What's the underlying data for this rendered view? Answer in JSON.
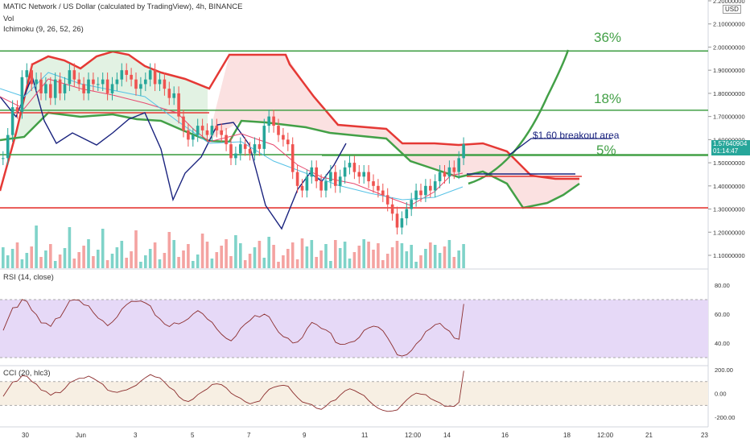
{
  "header": {
    "symbol": "MATIC Network / US Dollar (calculated by TradingView), 4h, BINANCE",
    "vol_label": "Vol",
    "ichimoku_label": "Ichimoku (9, 26, 52, 26)",
    "rsi_label": "RSI (14, close)",
    "cci_label": "CCI (20, hlc3)"
  },
  "price_axis": {
    "currency": "USD",
    "ticks": [
      "2.20000000",
      "2.10000000",
      "2.00000000",
      "1.90000000",
      "1.80000000",
      "1.70000000",
      "1.60000000",
      "1.50000000",
      "1.40000000",
      "1.30000000",
      "1.20000000",
      "1.10000000"
    ],
    "last_price": "1.57640904",
    "countdown": "01:14:47"
  },
  "rsi_axis": {
    "ticks": [
      "80.00",
      "60.00",
      "40.00"
    ]
  },
  "cci_axis": {
    "ticks": [
      "200.00",
      "0.00",
      "-200.00"
    ]
  },
  "time_axis": {
    "ticks": [
      "30",
      "Jun",
      "3",
      "5",
      "7",
      "9",
      "11",
      "12:00",
      "14",
      "16",
      "18",
      "12:00",
      "21",
      "23"
    ]
  },
  "annotations": {
    "target_36": "36%",
    "target_18": "18%",
    "target_5": "5%",
    "breakout": "$1.60 breakout area"
  },
  "colors": {
    "up": "#26a69a",
    "down": "#ef5350",
    "green_line": "#43a047",
    "red_line": "#e53935",
    "blue_line": "#1a237e",
    "rsi_band": "#e6d9f7",
    "cci_band": "#f7efe3"
  },
  "chart_data": {
    "type": "candlestick",
    "price_range": [
      1.08,
      2.22
    ],
    "hlines": [
      {
        "label": "36%",
        "price": 1.983
      },
      {
        "label": "18%",
        "price": 1.727
      },
      {
        "label": "5%",
        "price": 1.535
      },
      {
        "label": "",
        "price": 1.305
      }
    ],
    "close_path": [
      1.52,
      1.62,
      1.74,
      1.72,
      1.87,
      1.9,
      1.84,
      1.86,
      1.8,
      1.84,
      1.78,
      1.86,
      1.8,
      1.84,
      1.9,
      1.86,
      1.84,
      1.8,
      1.86,
      1.84,
      1.84,
      1.86,
      1.8,
      1.84,
      1.86,
      1.9,
      1.88,
      1.86,
      1.82,
      1.84,
      1.86,
      1.9,
      1.84,
      1.86,
      1.82,
      1.78,
      1.8,
      1.7,
      1.64,
      1.6,
      1.62,
      1.66,
      1.64,
      1.62,
      1.66,
      1.64,
      1.62,
      1.58,
      1.52,
      1.54,
      1.58,
      1.56,
      1.54,
      1.58,
      1.56,
      1.66,
      1.7,
      1.66,
      1.62,
      1.6,
      1.58,
      1.46,
      1.4,
      1.38,
      1.44,
      1.48,
      1.42,
      1.38,
      1.42,
      1.46,
      1.4,
      1.44,
      1.48,
      1.5,
      1.46,
      1.44,
      1.46,
      1.42,
      1.4,
      1.38,
      1.36,
      1.32,
      1.28,
      1.22,
      1.26,
      1.3,
      1.34,
      1.38,
      1.36,
      1.4,
      1.38,
      1.42,
      1.46,
      1.44,
      1.48,
      1.46,
      1.52,
      1.58
    ],
    "rsi": {
      "range": [
        25,
        90
      ],
      "band": [
        30,
        70
      ],
      "last": 67
    },
    "cci": {
      "range": [
        -280,
        220
      ],
      "band": [
        -100,
        100
      ],
      "last": 190
    }
  }
}
